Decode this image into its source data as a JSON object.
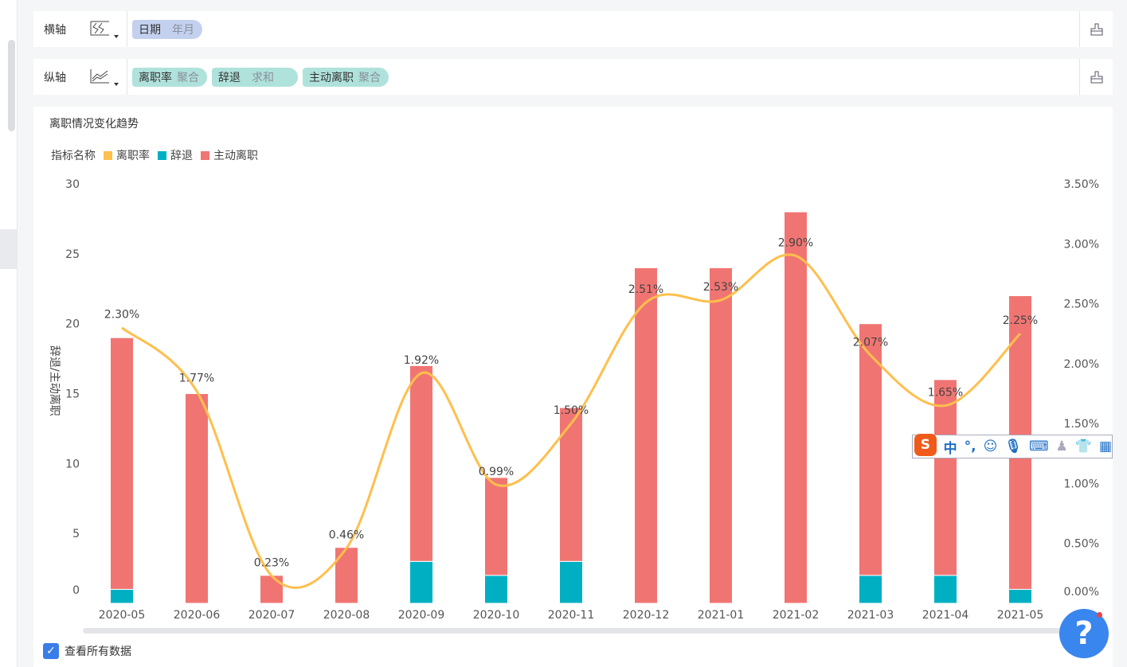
{
  "x_axis_row": {
    "label": "横轴",
    "fields": [
      {
        "name": "日期",
        "sub": "年月"
      }
    ]
  },
  "y_axis_row": {
    "label": "纵轴",
    "fields": [
      {
        "name": "离职率",
        "sub": "聚合"
      },
      {
        "name": "辞退",
        "sub": "求和"
      },
      {
        "name": "主动离职",
        "sub": "聚合"
      }
    ]
  },
  "show_all_label": "查看所有数据",
  "ime": {
    "lang": "中",
    "punct": "°,"
  },
  "help_label": "?",
  "chart_data": {
    "type": "bar+line",
    "title": "离职情况变化趋势",
    "legend_title": "指标名称",
    "legend_placement": "top-left",
    "categories": [
      "2020-05",
      "2020-06",
      "2020-07",
      "2020-08",
      "2020-09",
      "2020-10",
      "2020-11",
      "2020-12",
      "2021-01",
      "2021-02",
      "2021-03",
      "2021-04",
      "2021-05"
    ],
    "series": [
      {
        "name": "离职率",
        "type": "line",
        "axis": "right",
        "color": "#ffbf4d",
        "values": [
          2.3,
          1.77,
          0.23,
          0.46,
          1.92,
          0.99,
          1.5,
          2.51,
          2.53,
          2.9,
          2.07,
          1.65,
          2.25
        ],
        "labels": [
          "2.30%",
          "1.77%",
          "0.23%",
          "0.46%",
          "1.92%",
          "0.99%",
          "1.50%",
          "2.51%",
          "2.53%",
          "2.90%",
          "2.07%",
          "1.65%",
          "2.25%"
        ]
      },
      {
        "name": "辞退",
        "type": "bar",
        "stack": "a",
        "axis": "left",
        "color": "#00b0c2",
        "values": [
          1,
          0,
          0,
          0,
          3,
          2,
          3,
          0,
          0,
          0,
          2,
          2,
          1
        ]
      },
      {
        "name": "主动离职",
        "type": "bar",
        "stack": "a",
        "axis": "left",
        "color": "#f07572",
        "values": [
          18,
          15,
          2,
          4,
          14,
          7,
          11,
          24,
          24,
          28,
          18,
          14,
          21
        ]
      }
    ],
    "ylabel": "辞退/主动离职",
    "ylim": [
      0,
      30
    ],
    "yticks": [
      "0",
      "5",
      "10",
      "15",
      "20",
      "25",
      "30"
    ],
    "y2lim": [
      0,
      3.5
    ],
    "y2ticks": [
      "0.00%",
      "0.50%",
      "1.00%",
      "1.50%",
      "2.00%",
      "2.50%",
      "3.00%",
      "3.50%"
    ]
  }
}
